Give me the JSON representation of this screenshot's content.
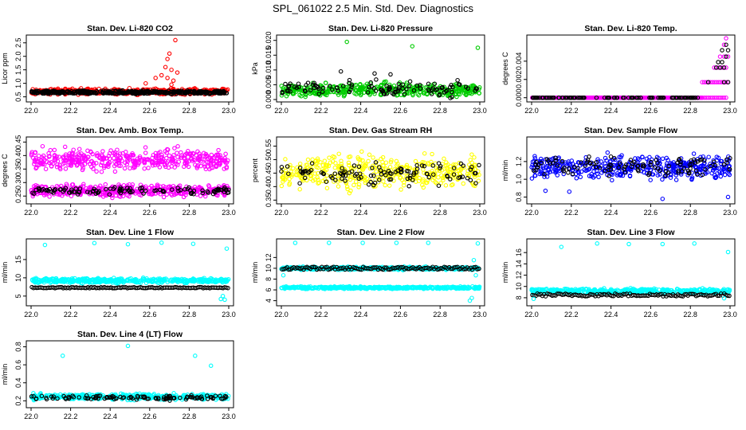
{
  "title": "SPL_061022  2.5 Min. Std. Dev. Diagnostics",
  "x_axis": {
    "range": [
      22.0,
      23.0
    ],
    "ticks": [
      "22.0",
      "22.2",
      "22.4",
      "22.6",
      "22.8",
      "23.0"
    ]
  },
  "colors": {
    "black_series": "#000000"
  },
  "chart_data": [
    {
      "id": "co2",
      "type": "scatter",
      "title": "Stan. Dev. Li-820 CO2",
      "ylabel": "Licor ppm",
      "ylim": [
        0.4,
        2.7
      ],
      "yticks": [
        0.5,
        1.0,
        1.5,
        2.0,
        2.5
      ],
      "ytick_labels": [
        "0.5",
        "1.0",
        "1.5",
        "2.0",
        "2.5"
      ],
      "color": "#ff0000",
      "series": [
        {
          "name": "",
          "kind": "band",
          "color": "#ff0000",
          "lo": 0.55,
          "hi": 0.85,
          "base": 0.7
        },
        {
          "name": "",
          "kind": "band",
          "color": "#000000",
          "lo": 0.58,
          "hi": 0.75,
          "base": 0.66
        },
        {
          "name": "",
          "kind": "points",
          "color": "#ff0000",
          "points": [
            [
              22.58,
              1.0
            ],
            [
              22.63,
              1.2
            ],
            [
              22.66,
              1.3
            ],
            [
              22.68,
              1.6
            ],
            [
              22.69,
              1.9
            ],
            [
              22.7,
              2.1
            ],
            [
              22.71,
              1.5
            ],
            [
              22.72,
              1.1
            ],
            [
              22.73,
              2.6
            ],
            [
              22.74,
              1.4
            ],
            [
              22.69,
              1.2
            ],
            [
              22.71,
              0.95
            ]
          ]
        }
      ]
    },
    {
      "id": "pressure",
      "type": "scatter",
      "title": "Stan. Dev. Li-820 Pressure",
      "ylabel": "kPa",
      "ylim": [
        0.0,
        0.021
      ],
      "yticks": [
        0.0,
        0.005,
        0.01,
        0.015,
        0.02
      ],
      "ytick_labels": [
        "0.000",
        "0.005",
        "0.010",
        "0.015",
        "0.020"
      ],
      "color": "#00cc00",
      "series": [
        {
          "name": "",
          "kind": "band",
          "color": "#00cc00",
          "lo": 0.0,
          "hi": 0.0065,
          "base": 0.003
        },
        {
          "name": "",
          "kind": "band",
          "color": "#000000",
          "lo": 0.0,
          "hi": 0.0075,
          "base": 0.004,
          "sparse": true
        },
        {
          "name": "",
          "kind": "points",
          "color": "#00cc00",
          "points": [
            [
              22.33,
              0.0195
            ],
            [
              22.66,
              0.018
            ],
            [
              22.99,
              0.0175
            ]
          ]
        },
        {
          "name": "",
          "kind": "points",
          "color": "#000000",
          "points": [
            [
              22.3,
              0.0095
            ],
            [
              22.47,
              0.0088
            ],
            [
              22.55,
              0.0085
            ]
          ]
        }
      ]
    },
    {
      "id": "temp",
      "type": "scatter",
      "title": "Stan. Dev. Li-820 Temp.",
      "ylabel": "degrees C",
      "ylim": [
        -0.0002,
        0.0066
      ],
      "yticks": [
        0.0,
        0.002,
        0.004
      ],
      "ytick_labels": [
        "0.000",
        "0.002",
        "0.004"
      ],
      "color": "#ff00ff",
      "series": [
        {
          "name": "",
          "kind": "band",
          "color": "#ff00ff",
          "lo": 0.0,
          "hi": 0.0,
          "base": 0.0,
          "xmax": 22.86
        },
        {
          "name": "",
          "kind": "band",
          "color": "#000000",
          "lo": 0.0,
          "hi": 0.0,
          "base": 0.0,
          "xmax": 22.86,
          "sparse": true
        },
        {
          "name": "",
          "kind": "points",
          "color": "#ff00ff",
          "points": [
            [
              22.86,
              0.0
            ],
            [
              22.87,
              0.0
            ],
            [
              22.88,
              0.0
            ],
            [
              22.89,
              0.0
            ],
            [
              22.9,
              0.0
            ],
            [
              22.91,
              0.0
            ],
            [
              22.92,
              0.0
            ],
            [
              22.93,
              0.0
            ],
            [
              22.94,
              0.0
            ],
            [
              22.95,
              0.0
            ],
            [
              22.96,
              0.0
            ],
            [
              22.97,
              0.0
            ],
            [
              22.98,
              0.0
            ],
            [
              22.86,
              0.0017
            ],
            [
              22.87,
              0.0017
            ],
            [
              22.88,
              0.0017
            ],
            [
              22.89,
              0.0017
            ],
            [
              22.9,
              0.0017
            ],
            [
              22.91,
              0.0017
            ],
            [
              22.92,
              0.0017
            ],
            [
              22.93,
              0.0017
            ],
            [
              22.94,
              0.0017
            ],
            [
              22.95,
              0.0017
            ],
            [
              22.96,
              0.0017
            ],
            [
              22.97,
              0.0017
            ],
            [
              22.98,
              0.0017
            ],
            [
              22.99,
              0.0017
            ],
            [
              22.92,
              0.0033
            ],
            [
              22.94,
              0.0033
            ],
            [
              22.96,
              0.0033
            ],
            [
              22.98,
              0.0033
            ],
            [
              22.95,
              0.0045
            ],
            [
              22.97,
              0.0045
            ],
            [
              22.99,
              0.0045
            ],
            [
              22.97,
              0.0058
            ],
            [
              22.98,
              0.0065
            ]
          ]
        },
        {
          "name": "",
          "kind": "points",
          "color": "#000000",
          "points": [
            [
              22.89,
              0.0017
            ],
            [
              22.93,
              0.0033
            ],
            [
              22.95,
              0.0033
            ],
            [
              22.97,
              0.0033
            ],
            [
              22.94,
              0.0039
            ],
            [
              22.96,
              0.0039
            ],
            [
              22.98,
              0.0045
            ],
            [
              22.96,
              0.0052
            ],
            [
              22.99,
              0.0052
            ],
            [
              22.98,
              0.0058
            ],
            [
              22.97,
              0.0017
            ],
            [
              22.99,
              0.0017
            ]
          ]
        }
      ]
    },
    {
      "id": "ambtemp",
      "type": "scatter",
      "title": "Stan. Dev. Amb. Box Temp.",
      "ylabel": "degrees C",
      "ylim": [
        0.23,
        0.46
      ],
      "yticks": [
        0.25,
        0.3,
        0.35,
        0.4,
        0.45
      ],
      "ytick_labels": [
        "0.25",
        "0.30",
        "0.35",
        "0.40",
        "0.45"
      ],
      "color": "#ff00ff",
      "series": [
        {
          "name": "",
          "kind": "band",
          "color": "#ff00ff",
          "lo": 0.33,
          "hi": 0.44,
          "base": 0.375
        },
        {
          "name": "",
          "kind": "band",
          "color": "#ff00ff",
          "lo": 0.24,
          "hi": 0.3,
          "base": 0.27
        },
        {
          "name": "",
          "kind": "band",
          "color": "#000000",
          "lo": 0.25,
          "hi": 0.29,
          "base": 0.27,
          "sparse": true
        }
      ]
    },
    {
      "id": "rh",
      "type": "scatter",
      "title": "Stan. Dev. Gas Stream RH",
      "ylabel": "percent",
      "ylim": [
        0.345,
        0.575
      ],
      "yticks": [
        0.35,
        0.4,
        0.45,
        0.5,
        0.55
      ],
      "ytick_labels": [
        "0.35",
        "0.40",
        "0.45",
        "0.50",
        "0.55"
      ],
      "color": "#ffff00",
      "series": [
        {
          "name": "",
          "kind": "band",
          "color": "#ffff00",
          "lo": 0.37,
          "hi": 0.54,
          "base": 0.45
        },
        {
          "name": "",
          "kind": "band",
          "color": "#000000",
          "lo": 0.39,
          "hi": 0.51,
          "base": 0.44,
          "sparse": true
        }
      ]
    },
    {
      "id": "sampleflow",
      "type": "scatter",
      "title": "Stan. Dev. Sample Flow",
      "ylabel": "ml/min",
      "ylim": [
        0.75,
        1.45
      ],
      "yticks": [
        0.8,
        1.0,
        1.2
      ],
      "ytick_labels": [
        "0.8",
        "1.0",
        "1.2"
      ],
      "color": "#0000ff",
      "series": [
        {
          "name": "",
          "kind": "band",
          "color": "#0000ff",
          "lo": 0.95,
          "hi": 1.32,
          "base": 1.14
        },
        {
          "name": "",
          "kind": "band",
          "color": "#000000",
          "lo": 1.0,
          "hi": 1.3,
          "base": 1.15,
          "sparse": true
        },
        {
          "name": "",
          "kind": "points",
          "color": "#0000ff",
          "points": [
            [
              22.07,
              0.87
            ],
            [
              22.19,
              0.86
            ],
            [
              22.66,
              0.78
            ],
            [
              22.99,
              0.8
            ]
          ]
        }
      ]
    },
    {
      "id": "line1",
      "type": "scatter",
      "title": "Stan. Dev. Line 1 Flow",
      "ylabel": "ml/min",
      "ylim": [
        3,
        20
      ],
      "yticks": [
        5,
        10,
        15
      ],
      "ytick_labels": [
        "5",
        "10",
        "15"
      ],
      "color": "#00ffff",
      "series": [
        {
          "name": "",
          "kind": "band",
          "color": "#00ffff",
          "lo": 8.3,
          "hi": 10.2,
          "base": 9.2
        },
        {
          "name": "",
          "kind": "line",
          "color": "#000000",
          "base": 7.3,
          "jitter": 0.15
        },
        {
          "name": "",
          "kind": "points",
          "color": "#00ffff",
          "points": [
            [
              22.07,
              19.0
            ],
            [
              22.32,
              19.5
            ],
            [
              22.49,
              19.2
            ],
            [
              22.66,
              19.6
            ],
            [
              22.82,
              19.3
            ],
            [
              22.99,
              18.0
            ],
            [
              22.96,
              4.2
            ],
            [
              22.97,
              5.0
            ],
            [
              22.98,
              4.0
            ]
          ]
        }
      ]
    },
    {
      "id": "line2",
      "type": "scatter",
      "title": "Stan. Dev. Line 2 Flow",
      "ylabel": "ml/min",
      "ylim": [
        3.5,
        15
      ],
      "yticks": [
        4,
        6,
        8,
        10,
        12
      ],
      "ytick_labels": [
        "4",
        "6",
        "8",
        "10",
        "12"
      ],
      "color": "#00ffff",
      "series": [
        {
          "name": "",
          "kind": "band",
          "color": "#00ffff",
          "lo": 9.6,
          "hi": 10.4,
          "base": 10.0
        },
        {
          "name": "",
          "kind": "band",
          "color": "#00ffff",
          "lo": 6.1,
          "hi": 6.7,
          "base": 6.4
        },
        {
          "name": "",
          "kind": "line",
          "color": "#000000",
          "base": 10.0,
          "jitter": 0.25
        },
        {
          "name": "",
          "kind": "points",
          "color": "#00ffff",
          "points": [
            [
              22.07,
              14.7
            ],
            [
              22.24,
              14.7
            ],
            [
              22.41,
              14.7
            ],
            [
              22.58,
              14.7
            ],
            [
              22.74,
              14.7
            ],
            [
              22.99,
              14.6
            ],
            [
              22.97,
              11.5
            ],
            [
              22.95,
              4.0
            ],
            [
              22.96,
              4.5
            ],
            [
              22.98,
              8.7
            ],
            [
              22.01,
              8.7
            ]
          ]
        }
      ]
    },
    {
      "id": "line3",
      "type": "scatter",
      "title": "Stan. Dev. Line 3 Flow",
      "ylabel": "ml/min",
      "ylim": [
        7,
        18
      ],
      "yticks": [
        8,
        10,
        12,
        14,
        16
      ],
      "ytick_labels": [
        "8",
        "10",
        "12",
        "14",
        "16"
      ],
      "color": "#00ffff",
      "series": [
        {
          "name": "",
          "kind": "band",
          "color": "#00ffff",
          "lo": 8.6,
          "hi": 9.8,
          "base": 9.2
        },
        {
          "name": "",
          "kind": "line",
          "color": "#000000",
          "base": 8.5,
          "jitter": 0.25
        },
        {
          "name": "",
          "kind": "points",
          "color": "#00ffff",
          "points": [
            [
              22.15,
              17.0
            ],
            [
              22.33,
              17.6
            ],
            [
              22.49,
              17.5
            ],
            [
              22.66,
              17.5
            ],
            [
              22.82,
              17.6
            ],
            [
              22.99,
              16.1
            ],
            [
              22.01,
              7.8
            ],
            [
              22.97,
              7.9
            ]
          ]
        }
      ]
    },
    {
      "id": "line4",
      "type": "scatter",
      "title": "Stan. Dev. Line 4 (LT) Flow",
      "ylabel": "ml/min",
      "ylim": [
        0.15,
        0.84
      ],
      "yticks": [
        0.2,
        0.4,
        0.6,
        0.8
      ],
      "ytick_labels": [
        "0.2",
        "0.4",
        "0.6",
        "0.8"
      ],
      "color": "#00ffff",
      "series": [
        {
          "name": "",
          "kind": "band",
          "color": "#00ffff",
          "lo": 0.2,
          "hi": 0.29,
          "base": 0.245
        },
        {
          "name": "",
          "kind": "band",
          "color": "#000000",
          "lo": 0.2,
          "hi": 0.27,
          "base": 0.235,
          "sparse": true
        },
        {
          "name": "",
          "kind": "points",
          "color": "#00ffff",
          "points": [
            [
              22.16,
              0.7
            ],
            [
              22.49,
              0.81
            ],
            [
              22.83,
              0.7
            ],
            [
              22.91,
              0.59
            ]
          ]
        }
      ]
    }
  ]
}
